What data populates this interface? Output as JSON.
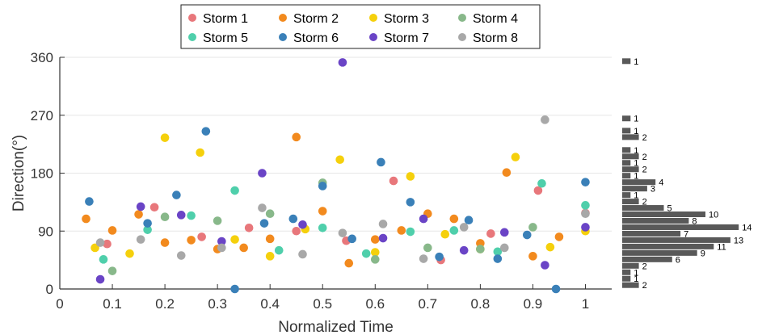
{
  "chart_data": {
    "type": "scatter",
    "xlabel": "Normalized Time",
    "ylabel": "Direction(°)",
    "xlim": [
      0,
      1.05
    ],
    "ylim": [
      0,
      360
    ],
    "xticks": [
      {
        "value": 0,
        "label": "0"
      },
      {
        "value": 0.1,
        "label": "0.1"
      },
      {
        "value": 0.2,
        "label": "0.2"
      },
      {
        "value": 0.3,
        "label": "0.3"
      },
      {
        "value": 0.4,
        "label": "0.4"
      },
      {
        "value": 0.5,
        "label": "0.5"
      },
      {
        "value": 0.6,
        "label": "0.6"
      },
      {
        "value": 0.7,
        "label": "0.7"
      },
      {
        "value": 0.8,
        "label": "0.8"
      },
      {
        "value": 0.9,
        "label": "0.9"
      },
      {
        "value": 1,
        "label": "1"
      }
    ],
    "yticks": [
      {
        "value": 0,
        "label": "0"
      },
      {
        "value": 90,
        "label": "90"
      },
      {
        "value": 180,
        "label": "180"
      },
      {
        "value": 270,
        "label": "270"
      },
      {
        "value": 360,
        "label": "360"
      }
    ],
    "grid": "horizontal",
    "legend_position": "top",
    "series": [
      {
        "name": "Storm 1",
        "color": "#E8777B",
        "points": [
          [
            0.09,
            70
          ],
          [
            0.18,
            127
          ],
          [
            0.27,
            81
          ],
          [
            0.36,
            95
          ],
          [
            0.45,
            90
          ],
          [
            0.545,
            75
          ],
          [
            0.635,
            168
          ],
          [
            0.725,
            45
          ],
          [
            0.82,
            86
          ],
          [
            0.91,
            153
          ],
          [
            1.0,
            118
          ]
        ]
      },
      {
        "name": "Storm 2",
        "color": "#F28A1E",
        "points": [
          [
            0.05,
            109
          ],
          [
            0.1,
            91
          ],
          [
            0.15,
            116
          ],
          [
            0.2,
            72
          ],
          [
            0.25,
            76
          ],
          [
            0.3,
            62
          ],
          [
            0.35,
            64
          ],
          [
            0.4,
            78
          ],
          [
            0.45,
            236
          ],
          [
            0.5,
            121
          ],
          [
            0.55,
            40
          ],
          [
            0.6,
            77
          ],
          [
            0.65,
            91
          ],
          [
            0.7,
            117
          ],
          [
            0.75,
            109
          ],
          [
            0.8,
            71
          ],
          [
            0.85,
            181
          ],
          [
            0.9,
            51
          ],
          [
            0.95,
            81
          ]
        ]
      },
      {
        "name": "Storm 3",
        "color": "#F5D00C",
        "points": [
          [
            0.067,
            64
          ],
          [
            0.133,
            55
          ],
          [
            0.2,
            235
          ],
          [
            0.267,
            212
          ],
          [
            0.333,
            77
          ],
          [
            0.4,
            51
          ],
          [
            0.467,
            93
          ],
          [
            0.533,
            201
          ],
          [
            0.6,
            57
          ],
          [
            0.667,
            175
          ],
          [
            0.733,
            85
          ],
          [
            0.8,
            62
          ],
          [
            0.867,
            205
          ],
          [
            0.933,
            65
          ],
          [
            1.0,
            90
          ]
        ]
      },
      {
        "name": "Storm 4",
        "color": "#88B88A",
        "points": [
          [
            0.1,
            28
          ],
          [
            0.2,
            112
          ],
          [
            0.3,
            106
          ],
          [
            0.4,
            117
          ],
          [
            0.5,
            165
          ],
          [
            0.6,
            46
          ],
          [
            0.7,
            64
          ],
          [
            0.8,
            62
          ],
          [
            0.9,
            96
          ]
        ]
      },
      {
        "name": "Storm 5",
        "color": "#4FCFAB",
        "points": [
          [
            0.083,
            46
          ],
          [
            0.167,
            92
          ],
          [
            0.25,
            114
          ],
          [
            0.333,
            153
          ],
          [
            0.417,
            60
          ],
          [
            0.5,
            95
          ],
          [
            0.583,
            55
          ],
          [
            0.667,
            89
          ],
          [
            0.75,
            91
          ],
          [
            0.833,
            58
          ],
          [
            0.917,
            164
          ],
          [
            1.0,
            130
          ]
        ]
      },
      {
        "name": "Storm 6",
        "color": "#3A80B8",
        "points": [
          [
            0.056,
            136
          ],
          [
            0.167,
            102
          ],
          [
            0.222,
            146
          ],
          [
            0.278,
            245
          ],
          [
            0.333,
            0
          ],
          [
            0.389,
            102
          ],
          [
            0.444,
            109
          ],
          [
            0.5,
            160
          ],
          [
            0.556,
            78
          ],
          [
            0.611,
            197
          ],
          [
            0.667,
            135
          ],
          [
            0.722,
            50
          ],
          [
            0.778,
            107
          ],
          [
            0.833,
            47
          ],
          [
            0.889,
            84
          ],
          [
            0.944,
            0
          ],
          [
            1.0,
            166
          ]
        ]
      },
      {
        "name": "Storm 7",
        "color": "#6A44C6",
        "points": [
          [
            0.077,
            15
          ],
          [
            0.154,
            128
          ],
          [
            0.231,
            115
          ],
          [
            0.308,
            74
          ],
          [
            0.385,
            180
          ],
          [
            0.462,
            100
          ],
          [
            0.538,
            352
          ],
          [
            0.615,
            79
          ],
          [
            0.692,
            109
          ],
          [
            0.769,
            60
          ],
          [
            0.846,
            88
          ],
          [
            0.923,
            37
          ],
          [
            1.0,
            96
          ]
        ]
      },
      {
        "name": "Storm 8",
        "color": "#A8A8A8",
        "points": [
          [
            0.077,
            72
          ],
          [
            0.154,
            77
          ],
          [
            0.231,
            52
          ],
          [
            0.308,
            64
          ],
          [
            0.385,
            126
          ],
          [
            0.462,
            54
          ],
          [
            0.538,
            87
          ],
          [
            0.615,
            101
          ],
          [
            0.692,
            47
          ],
          [
            0.769,
            96
          ],
          [
            0.846,
            64
          ],
          [
            0.923,
            263
          ],
          [
            1.0,
            117
          ]
        ]
      }
    ],
    "histogram": {
      "color": "#595959",
      "bins": [
        {
          "y": 354,
          "count": 1
        },
        {
          "y": 265,
          "count": 1
        },
        {
          "y": 246,
          "count": 1
        },
        {
          "y": 236,
          "count": 2
        },
        {
          "y": 216,
          "count": 1
        },
        {
          "y": 206,
          "count": 2
        },
        {
          "y": 196,
          "count": 1
        },
        {
          "y": 186,
          "count": 2
        },
        {
          "y": 176,
          "count": 1
        },
        {
          "y": 166,
          "count": 4
        },
        {
          "y": 156,
          "count": 3
        },
        {
          "y": 146,
          "count": 1
        },
        {
          "y": 136,
          "count": 2
        },
        {
          "y": 126,
          "count": 5
        },
        {
          "y": 116,
          "count": 10
        },
        {
          "y": 106,
          "count": 8
        },
        {
          "y": 96,
          "count": 14
        },
        {
          "y": 86,
          "count": 7
        },
        {
          "y": 76,
          "count": 13
        },
        {
          "y": 66,
          "count": 11
        },
        {
          "y": 56,
          "count": 9
        },
        {
          "y": 46,
          "count": 6
        },
        {
          "y": 36,
          "count": 2
        },
        {
          "y": 26,
          "count": 1
        },
        {
          "y": 16,
          "count": 1
        },
        {
          "y": 6,
          "count": 2
        }
      ]
    }
  }
}
